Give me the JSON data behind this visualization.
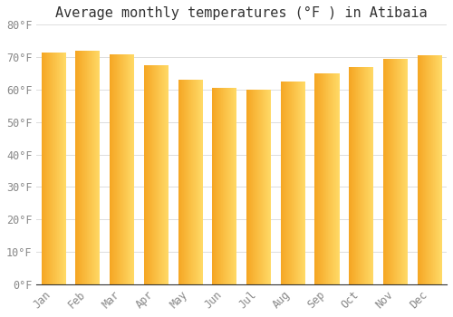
{
  "title": "Average monthly temperatures (°F ) in Atibaia",
  "months": [
    "Jan",
    "Feb",
    "Mar",
    "Apr",
    "May",
    "Jun",
    "Jul",
    "Aug",
    "Sep",
    "Oct",
    "Nov",
    "Dec"
  ],
  "values": [
    71.5,
    72.0,
    71.0,
    67.5,
    63.0,
    60.5,
    60.0,
    62.5,
    65.0,
    67.0,
    69.5,
    70.5
  ],
  "bar_color_left": "#F5A623",
  "bar_color_right": "#FFD966",
  "ylim": [
    0,
    80
  ],
  "yticks": [
    0,
    10,
    20,
    30,
    40,
    50,
    60,
    70,
    80
  ],
  "ytick_labels": [
    "0°F",
    "10°F",
    "20°F",
    "30°F",
    "40°F",
    "50°F",
    "60°F",
    "70°F",
    "80°F"
  ],
  "background_color": "#FFFFFF",
  "grid_color": "#DDDDDD",
  "title_fontsize": 11,
  "tick_fontsize": 8.5,
  "tick_color": "#888888",
  "bar_width": 0.72
}
